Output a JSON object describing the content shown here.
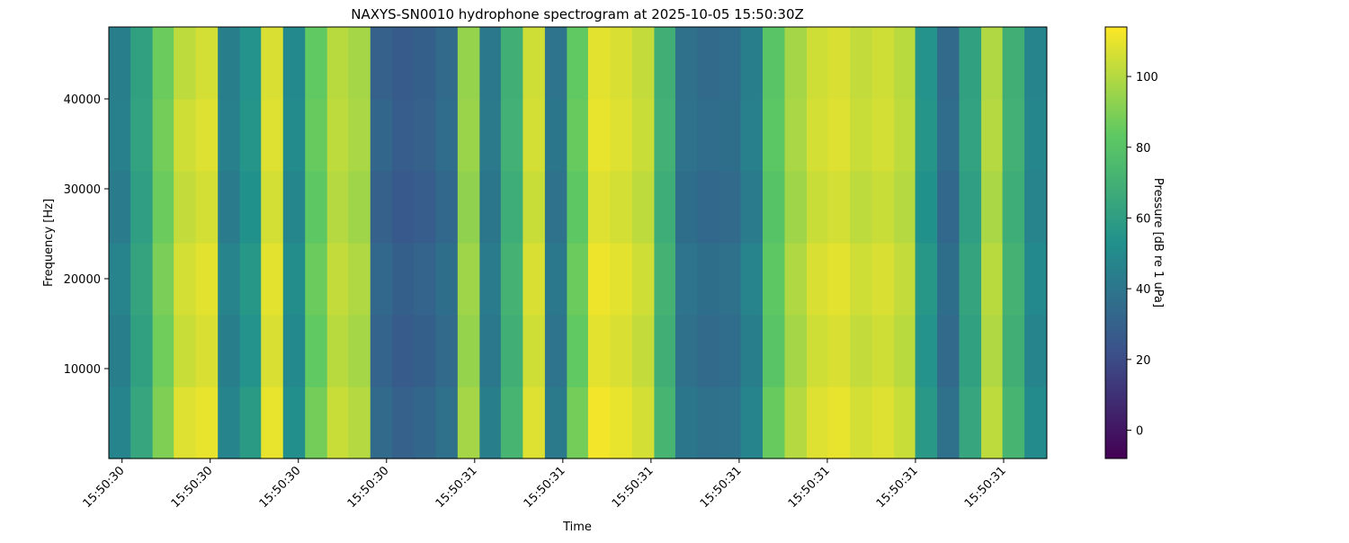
{
  "chart_data": {
    "type": "heatmap",
    "title": "NAXYS-SN0010 hydrophone spectrogram at 2025-10-05 15:50:30Z",
    "x_label": "Time",
    "y_label": "Frequency [Hz]",
    "colorbar_label": "Pressure [dB re 1 uPa]",
    "colormap": "viridis",
    "xlim": [
      -0.15,
      10.49
    ],
    "xticks": [
      {
        "value": 0,
        "label": "15:50:30"
      },
      {
        "value": 1,
        "label": "15:50:30"
      },
      {
        "value": 2,
        "label": "15:50:30"
      },
      {
        "value": 3,
        "label": "15:50:30"
      },
      {
        "value": 4,
        "label": "15:50:31"
      },
      {
        "value": 5,
        "label": "15:50:31"
      },
      {
        "value": 6,
        "label": "15:50:31"
      },
      {
        "value": 7,
        "label": "15:50:31"
      },
      {
        "value": 8,
        "label": "15:50:31"
      },
      {
        "value": 9,
        "label": "15:50:31"
      },
      {
        "value": 10,
        "label": "15:50:31"
      }
    ],
    "ylim": [
      0,
      48000
    ],
    "yticks": [
      10000,
      20000,
      30000,
      40000
    ],
    "clim": [
      -8,
      114
    ],
    "cticks": [
      0,
      20,
      40,
      60,
      80,
      100
    ],
    "x": [
      -0.03,
      0.22,
      0.47,
      0.71,
      0.96,
      1.21,
      1.46,
      1.7,
      1.95,
      2.2,
      2.45,
      2.69,
      2.94,
      3.19,
      3.43,
      3.68,
      3.93,
      4.18,
      4.42,
      4.67,
      4.92,
      5.17,
      5.41,
      5.66,
      5.91,
      6.16,
      6.4,
      6.65,
      6.9,
      7.14,
      7.39,
      7.64,
      7.89,
      8.13,
      8.38,
      8.63,
      8.88,
      9.12,
      9.37,
      9.62,
      9.87,
      10.11,
      10.36
    ],
    "y": [
      4000,
      12000,
      20000,
      28000,
      36000,
      44000
    ],
    "z": [
      [
        47,
        64,
        90,
        108,
        110,
        47,
        58,
        110,
        52,
        88,
        104,
        100,
        34,
        30,
        32,
        37,
        97,
        44,
        72,
        108,
        42,
        88,
        112,
        110,
        106,
        72,
        40,
        37,
        38,
        47,
        85,
        100,
        108,
        110,
        106,
        108,
        104,
        57,
        37,
        64,
        102,
        72,
        50
      ],
      [
        44,
        61,
        87,
        104,
        107,
        44,
        54,
        107,
        49,
        84,
        101,
        97,
        31,
        27,
        29,
        34,
        94,
        41,
        69,
        105,
        39,
        84,
        109,
        107,
        103,
        69,
        37,
        34,
        35,
        44,
        81,
        97,
        105,
        107,
        103,
        105,
        101,
        54,
        34,
        61,
        99,
        69,
        47
      ],
      [
        46,
        63,
        89,
        106,
        109,
        46,
        56,
        109,
        51,
        86,
        103,
        99,
        33,
        29,
        31,
        36,
        96,
        43,
        71,
        107,
        41,
        86,
        111,
        109,
        105,
        71,
        39,
        36,
        37,
        46,
        83,
        99,
        107,
        109,
        105,
        107,
        103,
        56,
        36,
        63,
        101,
        71,
        49
      ],
      [
        43,
        60,
        86,
        103,
        106,
        43,
        53,
        106,
        48,
        83,
        100,
        96,
        30,
        26,
        28,
        33,
        93,
        40,
        68,
        104,
        38,
        83,
        108,
        106,
        102,
        68,
        36,
        33,
        34,
        43,
        80,
        96,
        104,
        106,
        102,
        104,
        100,
        53,
        33,
        60,
        98,
        68,
        46
      ],
      [
        45,
        62,
        88,
        105,
        108,
        45,
        55,
        108,
        50,
        85,
        102,
        98,
        32,
        28,
        30,
        35,
        95,
        42,
        70,
        106,
        40,
        85,
        110,
        108,
        104,
        70,
        38,
        35,
        36,
        45,
        82,
        98,
        106,
        108,
        104,
        106,
        102,
        55,
        35,
        62,
        100,
        70,
        48
      ],
      [
        44,
        61,
        86,
        102,
        106,
        44,
        54,
        107,
        49,
        84,
        101,
        97,
        30,
        27,
        29,
        34,
        94,
        41,
        69,
        105,
        39,
        84,
        109,
        107,
        103,
        69,
        37,
        34,
        35,
        44,
        81,
        97,
        105,
        107,
        103,
        105,
        101,
        54,
        34,
        61,
        99,
        69,
        47
      ]
    ]
  }
}
